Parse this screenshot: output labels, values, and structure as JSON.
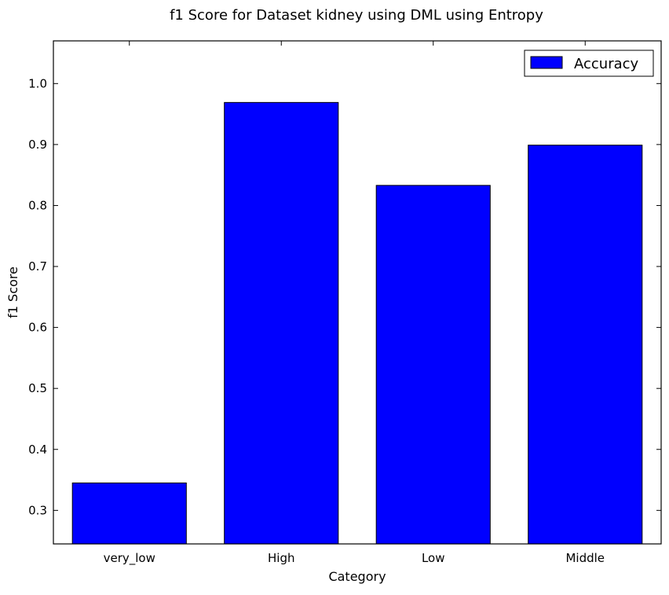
{
  "chart_data": {
    "type": "bar",
    "title": "f1 Score for Dataset kidney using DML using Entropy",
    "xlabel": "Category",
    "ylabel": "f1 Score",
    "categories": [
      "very_low",
      "High",
      "Low",
      "Middle"
    ],
    "series": [
      {
        "name": "Accuracy",
        "values": [
          0.345,
          0.969,
          0.833,
          0.899
        ]
      }
    ],
    "ylim": [
      0.245,
      1.07
    ],
    "yticks": [
      0.3,
      0.4,
      0.5,
      0.6,
      0.7,
      0.8,
      0.9,
      1.0
    ],
    "ytick_labels": [
      "0.3",
      "0.4",
      "0.5",
      "0.6",
      "0.7",
      "0.8",
      "0.9",
      "1.0"
    ],
    "legend_position": "top-right",
    "grid": false,
    "colors": {
      "bar": "#0000ff",
      "edge": "#000000"
    }
  }
}
